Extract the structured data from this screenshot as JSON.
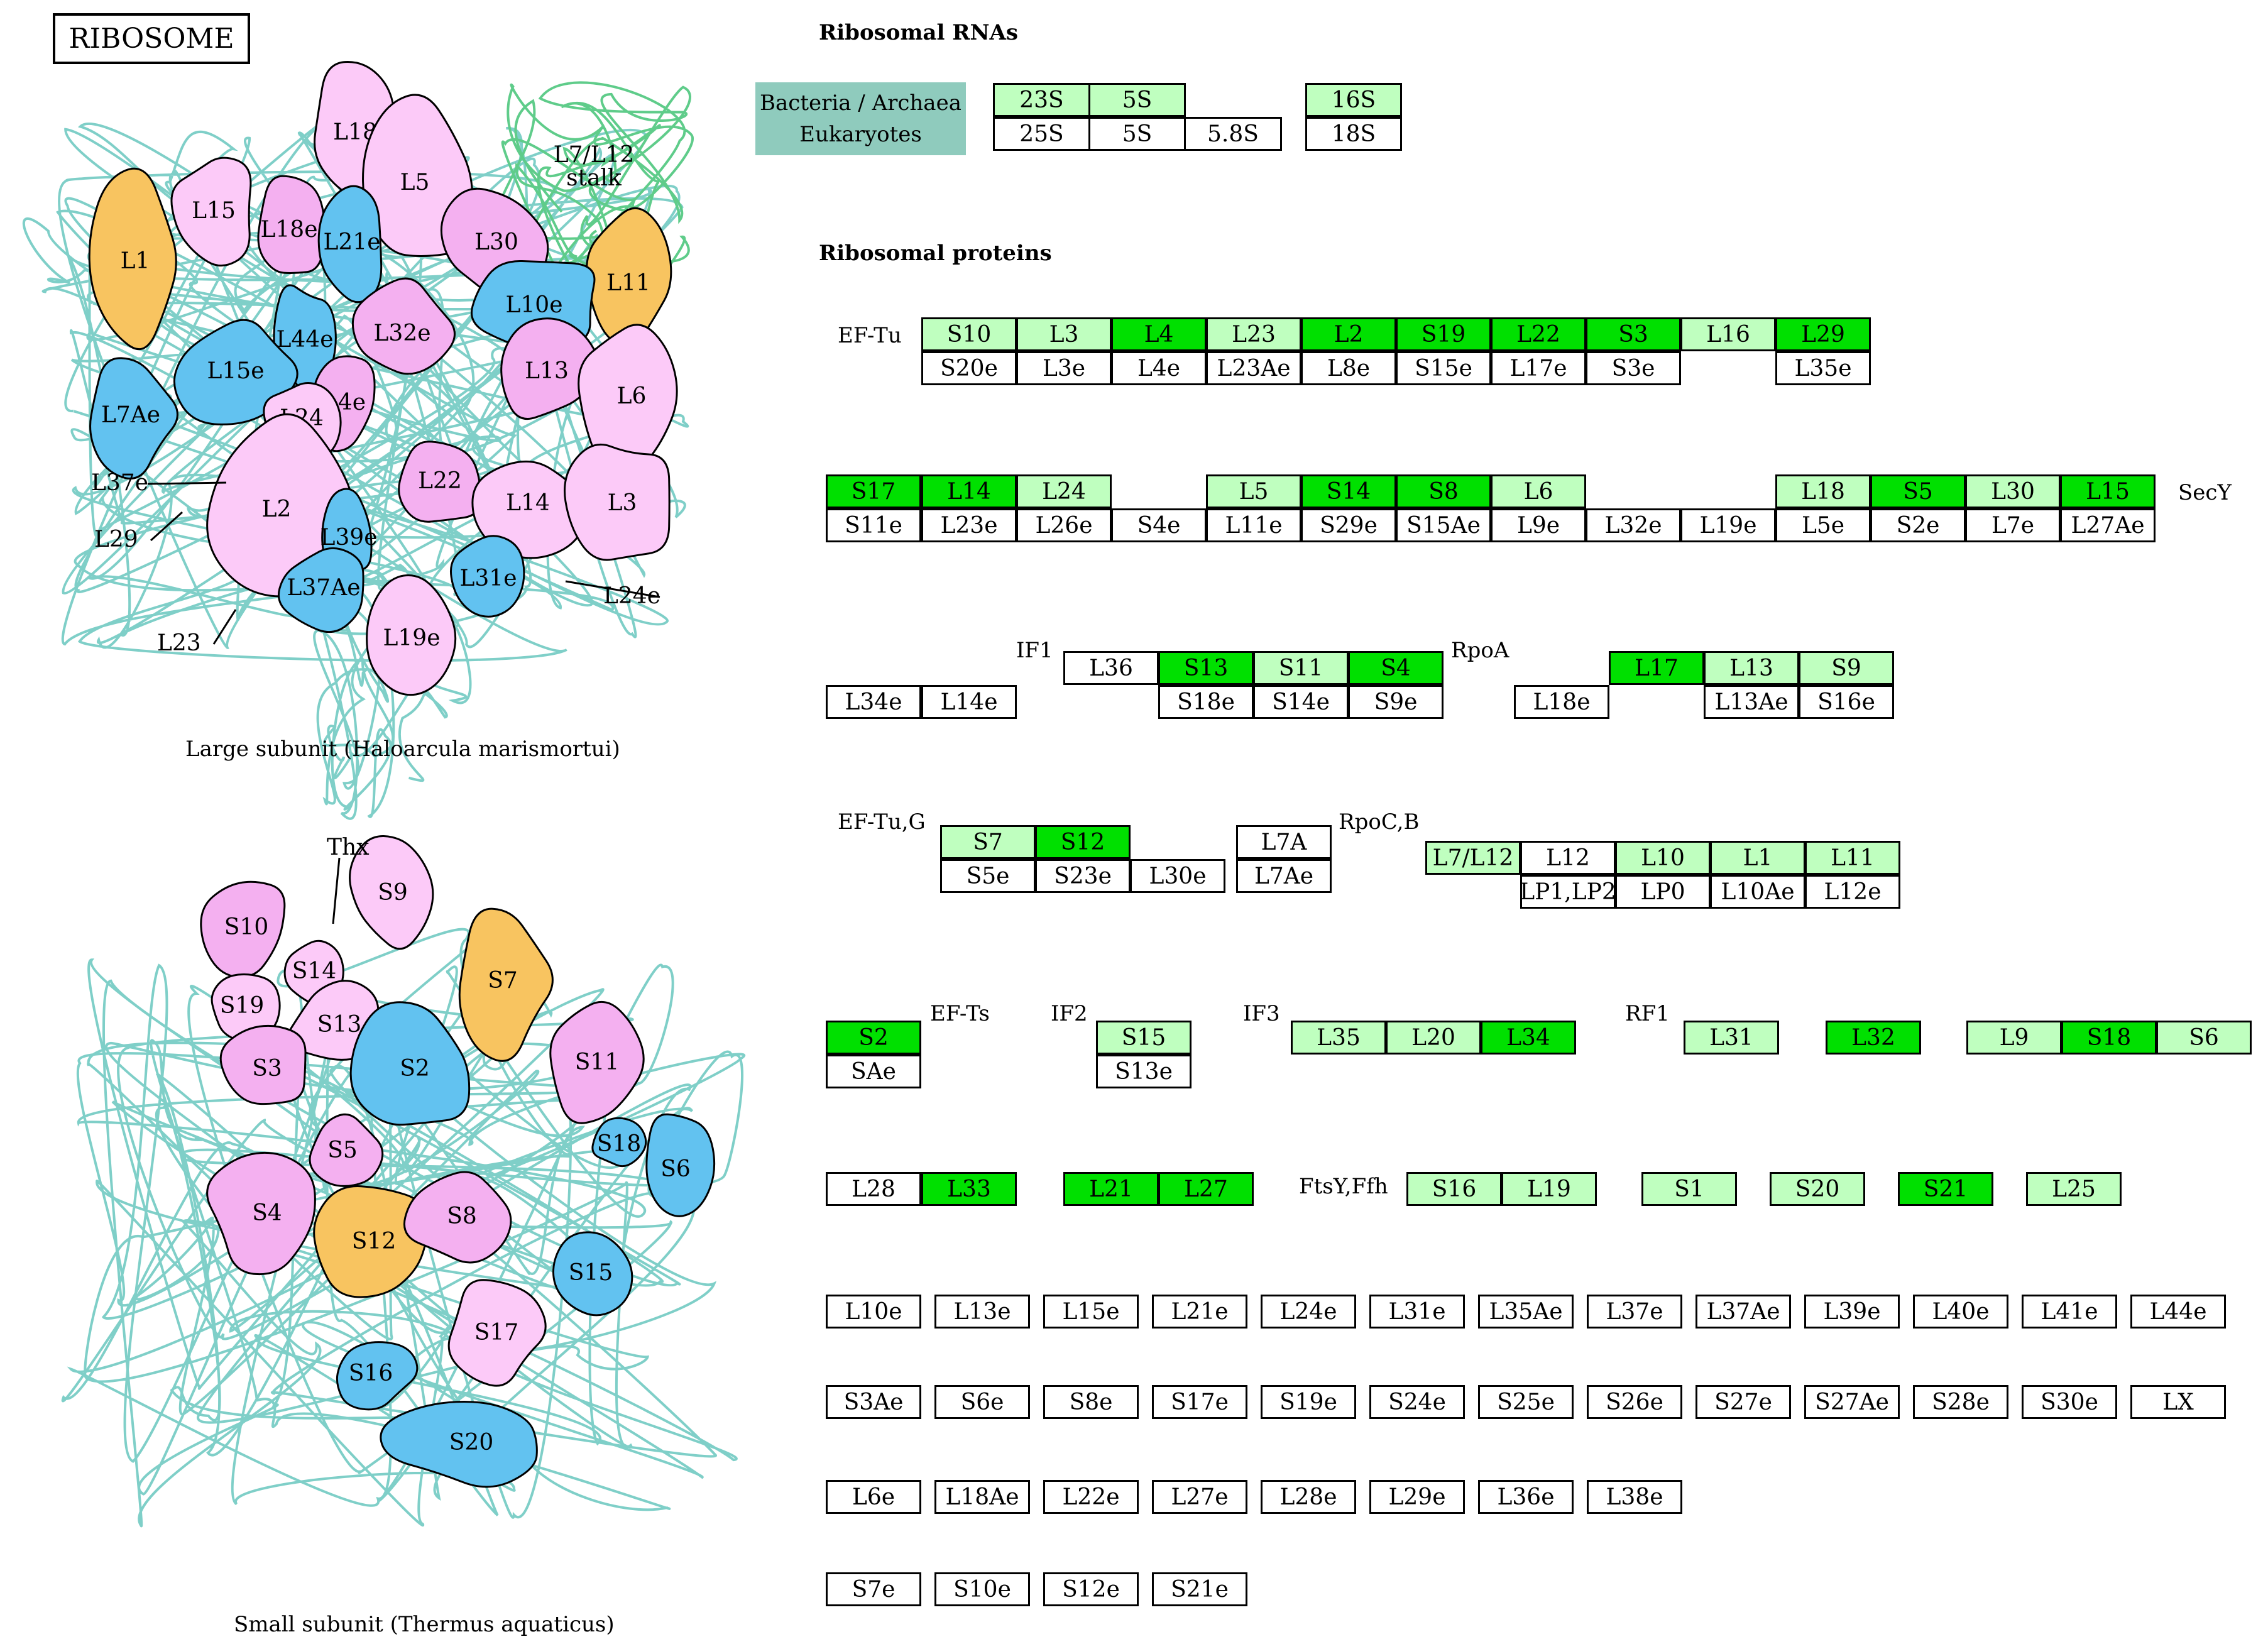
{
  "title": "RIBOSOME",
  "rrna": {
    "heading": "Ribosomal RNAs",
    "legend": [
      "Bacteria / Archaea",
      "Eukaryotes"
    ],
    "cells": [
      {
        "label": "23S",
        "cls": "lg"
      },
      {
        "label": "5S",
        "cls": "lg"
      },
      {
        "label": "",
        "cls": ""
      },
      {
        "label": "25S",
        "cls": ""
      },
      {
        "label": "5S",
        "cls": ""
      },
      {
        "label": "5.8S",
        "cls": ""
      },
      {
        "label": "16S",
        "cls": "lg"
      },
      {
        "label": "18S",
        "cls": ""
      }
    ]
  },
  "proteins_heading": "Ribosomal proteins",
  "ext_labels": [
    "EF-Tu",
    "SecY",
    "IF1",
    "RpoA",
    "EF-Tu,G",
    "RpoC,B",
    "EF-Ts",
    "IF2",
    "IF3",
    "RF1",
    "FtsY,Ffh"
  ],
  "cells": [
    {
      "label": "S10",
      "cls": "lg"
    },
    {
      "label": "L3",
      "cls": "lg"
    },
    {
      "label": "L4",
      "cls": "dg"
    },
    {
      "label": "L23",
      "cls": "lg"
    },
    {
      "label": "L2",
      "cls": "dg"
    },
    {
      "label": "S19",
      "cls": "dg"
    },
    {
      "label": "L22",
      "cls": "dg"
    },
    {
      "label": "S3",
      "cls": "dg"
    },
    {
      "label": "L16",
      "cls": "lg"
    },
    {
      "label": "L29",
      "cls": "dg"
    },
    {
      "label": "S20e",
      "cls": ""
    },
    {
      "label": "L3e",
      "cls": ""
    },
    {
      "label": "L4e",
      "cls": ""
    },
    {
      "label": "L23Ae",
      "cls": ""
    },
    {
      "label": "L8e",
      "cls": ""
    },
    {
      "label": "S15e",
      "cls": ""
    },
    {
      "label": "L17e",
      "cls": ""
    },
    {
      "label": "S3e",
      "cls": ""
    },
    {
      "label": "L35e",
      "cls": ""
    },
    {
      "label": "S17",
      "cls": "dg"
    },
    {
      "label": "L14",
      "cls": "dg"
    },
    {
      "label": "L24",
      "cls": "lg"
    },
    {
      "label": "L5",
      "cls": "lg"
    },
    {
      "label": "S14",
      "cls": "dg"
    },
    {
      "label": "S8",
      "cls": "dg"
    },
    {
      "label": "L6",
      "cls": "lg"
    },
    {
      "label": "L18",
      "cls": "lg"
    },
    {
      "label": "S5",
      "cls": "dg"
    },
    {
      "label": "L30",
      "cls": "lg"
    },
    {
      "label": "L15",
      "cls": "dg"
    },
    {
      "label": "S11e",
      "cls": ""
    },
    {
      "label": "L23e",
      "cls": ""
    },
    {
      "label": "L26e",
      "cls": ""
    },
    {
      "label": "S4e",
      "cls": ""
    },
    {
      "label": "L11e",
      "cls": ""
    },
    {
      "label": "S29e",
      "cls": ""
    },
    {
      "label": "S15Ae",
      "cls": ""
    },
    {
      "label": "L9e",
      "cls": ""
    },
    {
      "label": "L32e",
      "cls": ""
    },
    {
      "label": "L19e",
      "cls": ""
    },
    {
      "label": "L5e",
      "cls": ""
    },
    {
      "label": "S2e",
      "cls": ""
    },
    {
      "label": "L7e",
      "cls": ""
    },
    {
      "label": "L27Ae",
      "cls": ""
    },
    {
      "label": "L36",
      "cls": ""
    },
    {
      "label": "S13",
      "cls": "dg"
    },
    {
      "label": "S11",
      "cls": "lg"
    },
    {
      "label": "S4",
      "cls": "dg"
    },
    {
      "label": "L34e",
      "cls": ""
    },
    {
      "label": "L14e",
      "cls": ""
    },
    {
      "label": "S18e",
      "cls": ""
    },
    {
      "label": "S14e",
      "cls": ""
    },
    {
      "label": "S9e",
      "cls": ""
    },
    {
      "label": "L17",
      "cls": "dg"
    },
    {
      "label": "L13",
      "cls": "lg"
    },
    {
      "label": "S9",
      "cls": "lg"
    },
    {
      "label": "L18e",
      "cls": ""
    },
    {
      "label": "L13Ae",
      "cls": ""
    },
    {
      "label": "S16e",
      "cls": ""
    },
    {
      "label": "S7",
      "cls": "lg"
    },
    {
      "label": "S12",
      "cls": "dg"
    },
    {
      "label": "S5e",
      "cls": ""
    },
    {
      "label": "S23e",
      "cls": ""
    },
    {
      "label": "L30e",
      "cls": ""
    },
    {
      "label": "L7A",
      "cls": ""
    },
    {
      "label": "L7Ae",
      "cls": ""
    },
    {
      "label": "L7/L12",
      "cls": "lg"
    },
    {
      "label": "L12",
      "cls": ""
    },
    {
      "label": "L10",
      "cls": "lg"
    },
    {
      "label": "L1",
      "cls": "lg"
    },
    {
      "label": "L11",
      "cls": "lg"
    },
    {
      "label": "LP1,LP2",
      "cls": ""
    },
    {
      "label": "LP0",
      "cls": ""
    },
    {
      "label": "L10Ae",
      "cls": ""
    },
    {
      "label": "L12e",
      "cls": ""
    },
    {
      "label": "S2",
      "cls": "dg"
    },
    {
      "label": "SAe",
      "cls": ""
    },
    {
      "label": "S15",
      "cls": "lg"
    },
    {
      "label": "S13e",
      "cls": ""
    },
    {
      "label": "L35",
      "cls": "lg"
    },
    {
      "label": "L20",
      "cls": "lg"
    },
    {
      "label": "L34",
      "cls": "dg"
    },
    {
      "label": "L31",
      "cls": "lg"
    },
    {
      "label": "L32",
      "cls": "dg"
    },
    {
      "label": "L9",
      "cls": "lg"
    },
    {
      "label": "S18",
      "cls": "dg"
    },
    {
      "label": "S6",
      "cls": "lg"
    },
    {
      "label": "L28",
      "cls": ""
    },
    {
      "label": "L33",
      "cls": "dg"
    },
    {
      "label": "L21",
      "cls": "dg"
    },
    {
      "label": "L27",
      "cls": "dg"
    },
    {
      "label": "S16",
      "cls": "lg"
    },
    {
      "label": "L19",
      "cls": "lg"
    },
    {
      "label": "S1",
      "cls": "lg"
    },
    {
      "label": "S20",
      "cls": "lg"
    },
    {
      "label": "S21",
      "cls": "dg"
    },
    {
      "label": "L25",
      "cls": "lg"
    },
    {
      "label": "L10e",
      "cls": ""
    },
    {
      "label": "L13e",
      "cls": ""
    },
    {
      "label": "L15e",
      "cls": ""
    },
    {
      "label": "L21e",
      "cls": ""
    },
    {
      "label": "L24e",
      "cls": ""
    },
    {
      "label": "L31e",
      "cls": ""
    },
    {
      "label": "L35Ae",
      "cls": ""
    },
    {
      "label": "L37e",
      "cls": ""
    },
    {
      "label": "L37Ae",
      "cls": ""
    },
    {
      "label": "L39e",
      "cls": ""
    },
    {
      "label": "L40e",
      "cls": ""
    },
    {
      "label": "L41e",
      "cls": ""
    },
    {
      "label": "L44e",
      "cls": ""
    },
    {
      "label": "S3Ae",
      "cls": ""
    },
    {
      "label": "S6e",
      "cls": ""
    },
    {
      "label": "S8e",
      "cls": ""
    },
    {
      "label": "S17e",
      "cls": ""
    },
    {
      "label": "S19e",
      "cls": ""
    },
    {
      "label": "S24e",
      "cls": ""
    },
    {
      "label": "S25e",
      "cls": ""
    },
    {
      "label": "S26e",
      "cls": ""
    },
    {
      "label": "S27e",
      "cls": ""
    },
    {
      "label": "S27Ae",
      "cls": ""
    },
    {
      "label": "S28e",
      "cls": ""
    },
    {
      "label": "S30e",
      "cls": ""
    },
    {
      "label": "LX",
      "cls": ""
    },
    {
      "label": "L6e",
      "cls": ""
    },
    {
      "label": "L18Ae",
      "cls": ""
    },
    {
      "label": "L22e",
      "cls": ""
    },
    {
      "label": "L27e",
      "cls": ""
    },
    {
      "label": "L28e",
      "cls": ""
    },
    {
      "label": "L29e",
      "cls": ""
    },
    {
      "label": "L36e",
      "cls": ""
    },
    {
      "label": "L38e",
      "cls": ""
    },
    {
      "label": "S7e",
      "cls": ""
    },
    {
      "label": "S10e",
      "cls": ""
    },
    {
      "label": "S12e",
      "cls": ""
    },
    {
      "label": "S21e",
      "cls": ""
    }
  ],
  "colors": {
    "light_green": "#bfffbf",
    "dark_green": "#00e000",
    "legend_teal": "#8fcbbd",
    "rna_strand": "#7fcfc8",
    "orange": "#f8c460",
    "blue": "#62c2f0",
    "pink_light": "#fccaf8",
    "pink_mid": "#f4b0f0"
  },
  "large_subunit": {
    "caption": "Large subunit (Haloarcula marismortui)",
    "stalk_label": "L7/L12 stalk",
    "shapes": [
      {
        "label": "L1",
        "color": "orange"
      },
      {
        "label": "L11",
        "color": "orange"
      },
      {
        "label": "L18",
        "color": "pink_light"
      },
      {
        "label": "L5",
        "color": "pink_light"
      },
      {
        "label": "L15",
        "color": "pink_light"
      },
      {
        "label": "L18e",
        "color": "pink_mid"
      },
      {
        "label": "L21e",
        "color": "blue"
      },
      {
        "label": "L30",
        "color": "pink_mid"
      },
      {
        "label": "L10e",
        "color": "blue"
      },
      {
        "label": "L44e",
        "color": "blue"
      },
      {
        "label": "L32e",
        "color": "pink_mid"
      },
      {
        "label": "L15e",
        "color": "blue"
      },
      {
        "label": "L13",
        "color": "pink_mid"
      },
      {
        "label": "L6",
        "color": "pink_light"
      },
      {
        "label": "L7Ae",
        "color": "blue"
      },
      {
        "label": "L4e",
        "color": "pink_mid"
      },
      {
        "label": "L24",
        "color": "pink_light"
      },
      {
        "label": "L22",
        "color": "pink_mid"
      },
      {
        "label": "L14",
        "color": "pink_light"
      },
      {
        "label": "L3",
        "color": "pink_light"
      },
      {
        "label": "L2",
        "color": "pink_light"
      },
      {
        "label": "L39e",
        "color": "blue"
      },
      {
        "label": "L31e",
        "color": "blue"
      },
      {
        "label": "L37Ae",
        "color": "blue"
      },
      {
        "label": "L19e",
        "color": "pink_light"
      }
    ],
    "pointer_labels": [
      "L37e",
      "L29",
      "L23",
      "L24e"
    ]
  },
  "small_subunit": {
    "caption": "Small subunit (Thermus aquaticus)",
    "shapes": [
      {
        "label": "S10",
        "color": "pink_mid"
      },
      {
        "label": "S9",
        "color": "pink_light"
      },
      {
        "label": "S14",
        "color": "pink_light"
      },
      {
        "label": "S19",
        "color": "pink_light"
      },
      {
        "label": "S7",
        "color": "orange"
      },
      {
        "label": "S13",
        "color": "pink_light"
      },
      {
        "label": "S3",
        "color": "pink_mid"
      },
      {
        "label": "S2",
        "color": "blue"
      },
      {
        "label": "S11",
        "color": "pink_mid"
      },
      {
        "label": "S18",
        "color": "blue"
      },
      {
        "label": "S6",
        "color": "blue"
      },
      {
        "label": "S5",
        "color": "pink_mid"
      },
      {
        "label": "S4",
        "color": "pink_mid"
      },
      {
        "label": "S12",
        "color": "orange"
      },
      {
        "label": "S8",
        "color": "pink_mid"
      },
      {
        "label": "S15",
        "color": "blue"
      },
      {
        "label": "S17",
        "color": "pink_light"
      },
      {
        "label": "S16",
        "color": "blue"
      },
      {
        "label": "S20",
        "color": "blue"
      }
    ],
    "pointer_labels": [
      "Thx"
    ]
  }
}
